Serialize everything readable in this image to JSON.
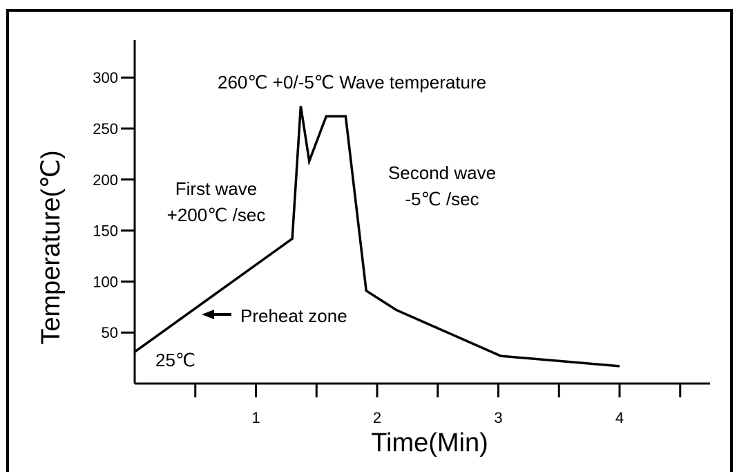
{
  "chart_data": {
    "type": "line",
    "xlabel": "Time(Min)",
    "ylabel": "Temperature(℃)",
    "xlim": [
      0,
      4.75
    ],
    "ylim": [
      0,
      330
    ],
    "x_ticks": [
      0.5,
      1,
      1.5,
      2,
      2.5,
      3,
      3.5,
      4,
      4.5
    ],
    "x_tick_labels": [
      {
        "x": 1,
        "label": "1"
      },
      {
        "x": 2,
        "label": "2"
      },
      {
        "x": 3,
        "label": "3"
      },
      {
        "x": 4,
        "label": "4"
      }
    ],
    "y_ticks": [
      {
        "y": 50,
        "label": "50"
      },
      {
        "y": 100,
        "label": "100"
      },
      {
        "y": 150,
        "label": "150"
      },
      {
        "y": 200,
        "label": "200"
      },
      {
        "y": 250,
        "label": "250"
      },
      {
        "y": 300,
        "label": "300"
      }
    ],
    "series": [
      {
        "points": [
          [
            0,
            31
          ],
          [
            1.3,
            142
          ],
          [
            1.37,
            272
          ],
          [
            1.44,
            218
          ],
          [
            1.58,
            262
          ],
          [
            1.74,
            262
          ],
          [
            1.91,
            91
          ],
          [
            2.16,
            72
          ],
          [
            3.02,
            27
          ],
          [
            4.0,
            17
          ]
        ],
        "color": "#000000"
      }
    ],
    "annotations": [
      {
        "id": "wave-temp",
        "text": "260℃ +0/-5℃ Wave temperature"
      },
      {
        "id": "first-wave-1",
        "text": "First wave"
      },
      {
        "id": "first-wave-2",
        "text": "+200℃ /sec"
      },
      {
        "id": "second-wave-1",
        "text": "Second wave"
      },
      {
        "id": "second-wave-2",
        "text": "-5℃ /sec"
      },
      {
        "id": "preheat",
        "text": "Preheat zone"
      },
      {
        "id": "start-temp",
        "text": "25℃"
      }
    ]
  }
}
